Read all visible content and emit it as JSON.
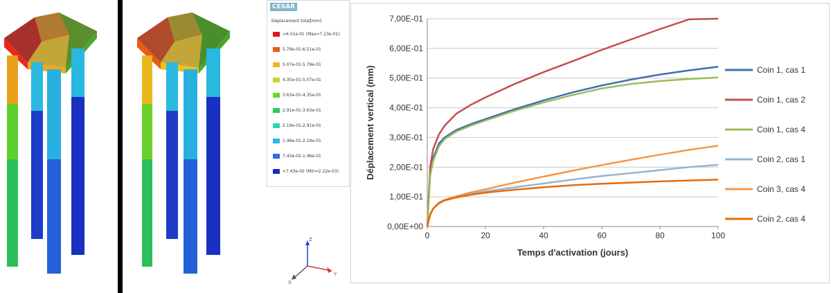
{
  "legend_panel": {
    "brand": "CESAR",
    "title": "Déplacement total[mm]",
    "items": [
      {
        "label": ">6.51e-01 (Max=7.23e-01)",
        "color": "#e8141b"
      },
      {
        "label": "5.79e-01-6.51e-01",
        "color": "#ef5a1c"
      },
      {
        "label": "5.07e-01-5.79e-01",
        "color": "#f2b31c"
      },
      {
        "label": "4.35e-01-5.07e-01",
        "color": "#c4dc24"
      },
      {
        "label": "3.63e-01-4.35e-01",
        "color": "#64d62c"
      },
      {
        "label": "2.91e-01-3.63e-01",
        "color": "#2ec85a"
      },
      {
        "label": "2.19e-01-2.91e-01",
        "color": "#28d8b4"
      },
      {
        "label": "1.46e-01-2.19e-01",
        "color": "#28b8e8"
      },
      {
        "label": "7.43e-02-1.46e-01",
        "color": "#2a6ee0"
      },
      {
        "label": "<7.43e-02 (Min=2.22e-03)",
        "color": "#1a28c8"
      }
    ]
  },
  "triad": {
    "z": "Z",
    "x": "X",
    "y": "Y"
  },
  "chart_data": {
    "type": "line",
    "xlabel": "Temps d'activation (jours)",
    "ylabel": "Déplacement vertical (mm)",
    "xlim": [
      0,
      100
    ],
    "ylim": [
      0,
      0.7
    ],
    "x_ticks": [
      "0",
      "20",
      "40",
      "60",
      "80",
      "100"
    ],
    "y_ticks": [
      "0,00E+00",
      "1,00E-01",
      "2,00E-01",
      "3,00E-01",
      "4,00E-01",
      "5,00E-01",
      "6,00E-01",
      "7,00E-01"
    ],
    "grid": "horizontal",
    "legend_position": "right",
    "x": [
      0,
      1,
      2,
      4,
      6,
      10,
      15,
      20,
      30,
      40,
      50,
      60,
      70,
      80,
      90,
      100
    ],
    "series": [
      {
        "name": "Coin 1, cas 1",
        "color": "#3e6fb0",
        "values": [
          0,
          0.18,
          0.23,
          0.28,
          0.3,
          0.325,
          0.345,
          0.362,
          0.395,
          0.425,
          0.452,
          0.475,
          0.495,
          0.512,
          0.526,
          0.538
        ]
      },
      {
        "name": "Coin 1, cas 2",
        "color": "#c0504d",
        "values": [
          0,
          0.2,
          0.26,
          0.31,
          0.34,
          0.38,
          0.41,
          0.435,
          0.48,
          0.52,
          0.557,
          0.595,
          0.63,
          0.665,
          0.698,
          0.7
        ]
      },
      {
        "name": "Coin 1, cas 4",
        "color": "#9bbb59",
        "values": [
          0,
          0.17,
          0.22,
          0.27,
          0.295,
          0.32,
          0.34,
          0.357,
          0.39,
          0.418,
          0.443,
          0.465,
          0.48,
          0.49,
          0.497,
          0.502
        ]
      },
      {
        "name": "Coin 2, cas 1",
        "color": "#95b3d7",
        "values": [
          0,
          0.04,
          0.06,
          0.08,
          0.09,
          0.1,
          0.11,
          0.118,
          0.132,
          0.145,
          0.158,
          0.17,
          0.18,
          0.19,
          0.2,
          0.208
        ]
      },
      {
        "name": "Coin 3, cas 4",
        "color": "#f79646",
        "values": [
          0,
          0.04,
          0.06,
          0.08,
          0.09,
          0.102,
          0.115,
          0.125,
          0.148,
          0.168,
          0.188,
          0.207,
          0.225,
          0.242,
          0.258,
          0.272
        ]
      },
      {
        "name": "Coin 2, cas 4",
        "color": "#e46c0a",
        "values": [
          0,
          0.04,
          0.06,
          0.078,
          0.088,
          0.098,
          0.107,
          0.114,
          0.124,
          0.132,
          0.139,
          0.144,
          0.148,
          0.152,
          0.155,
          0.158
        ]
      }
    ]
  }
}
